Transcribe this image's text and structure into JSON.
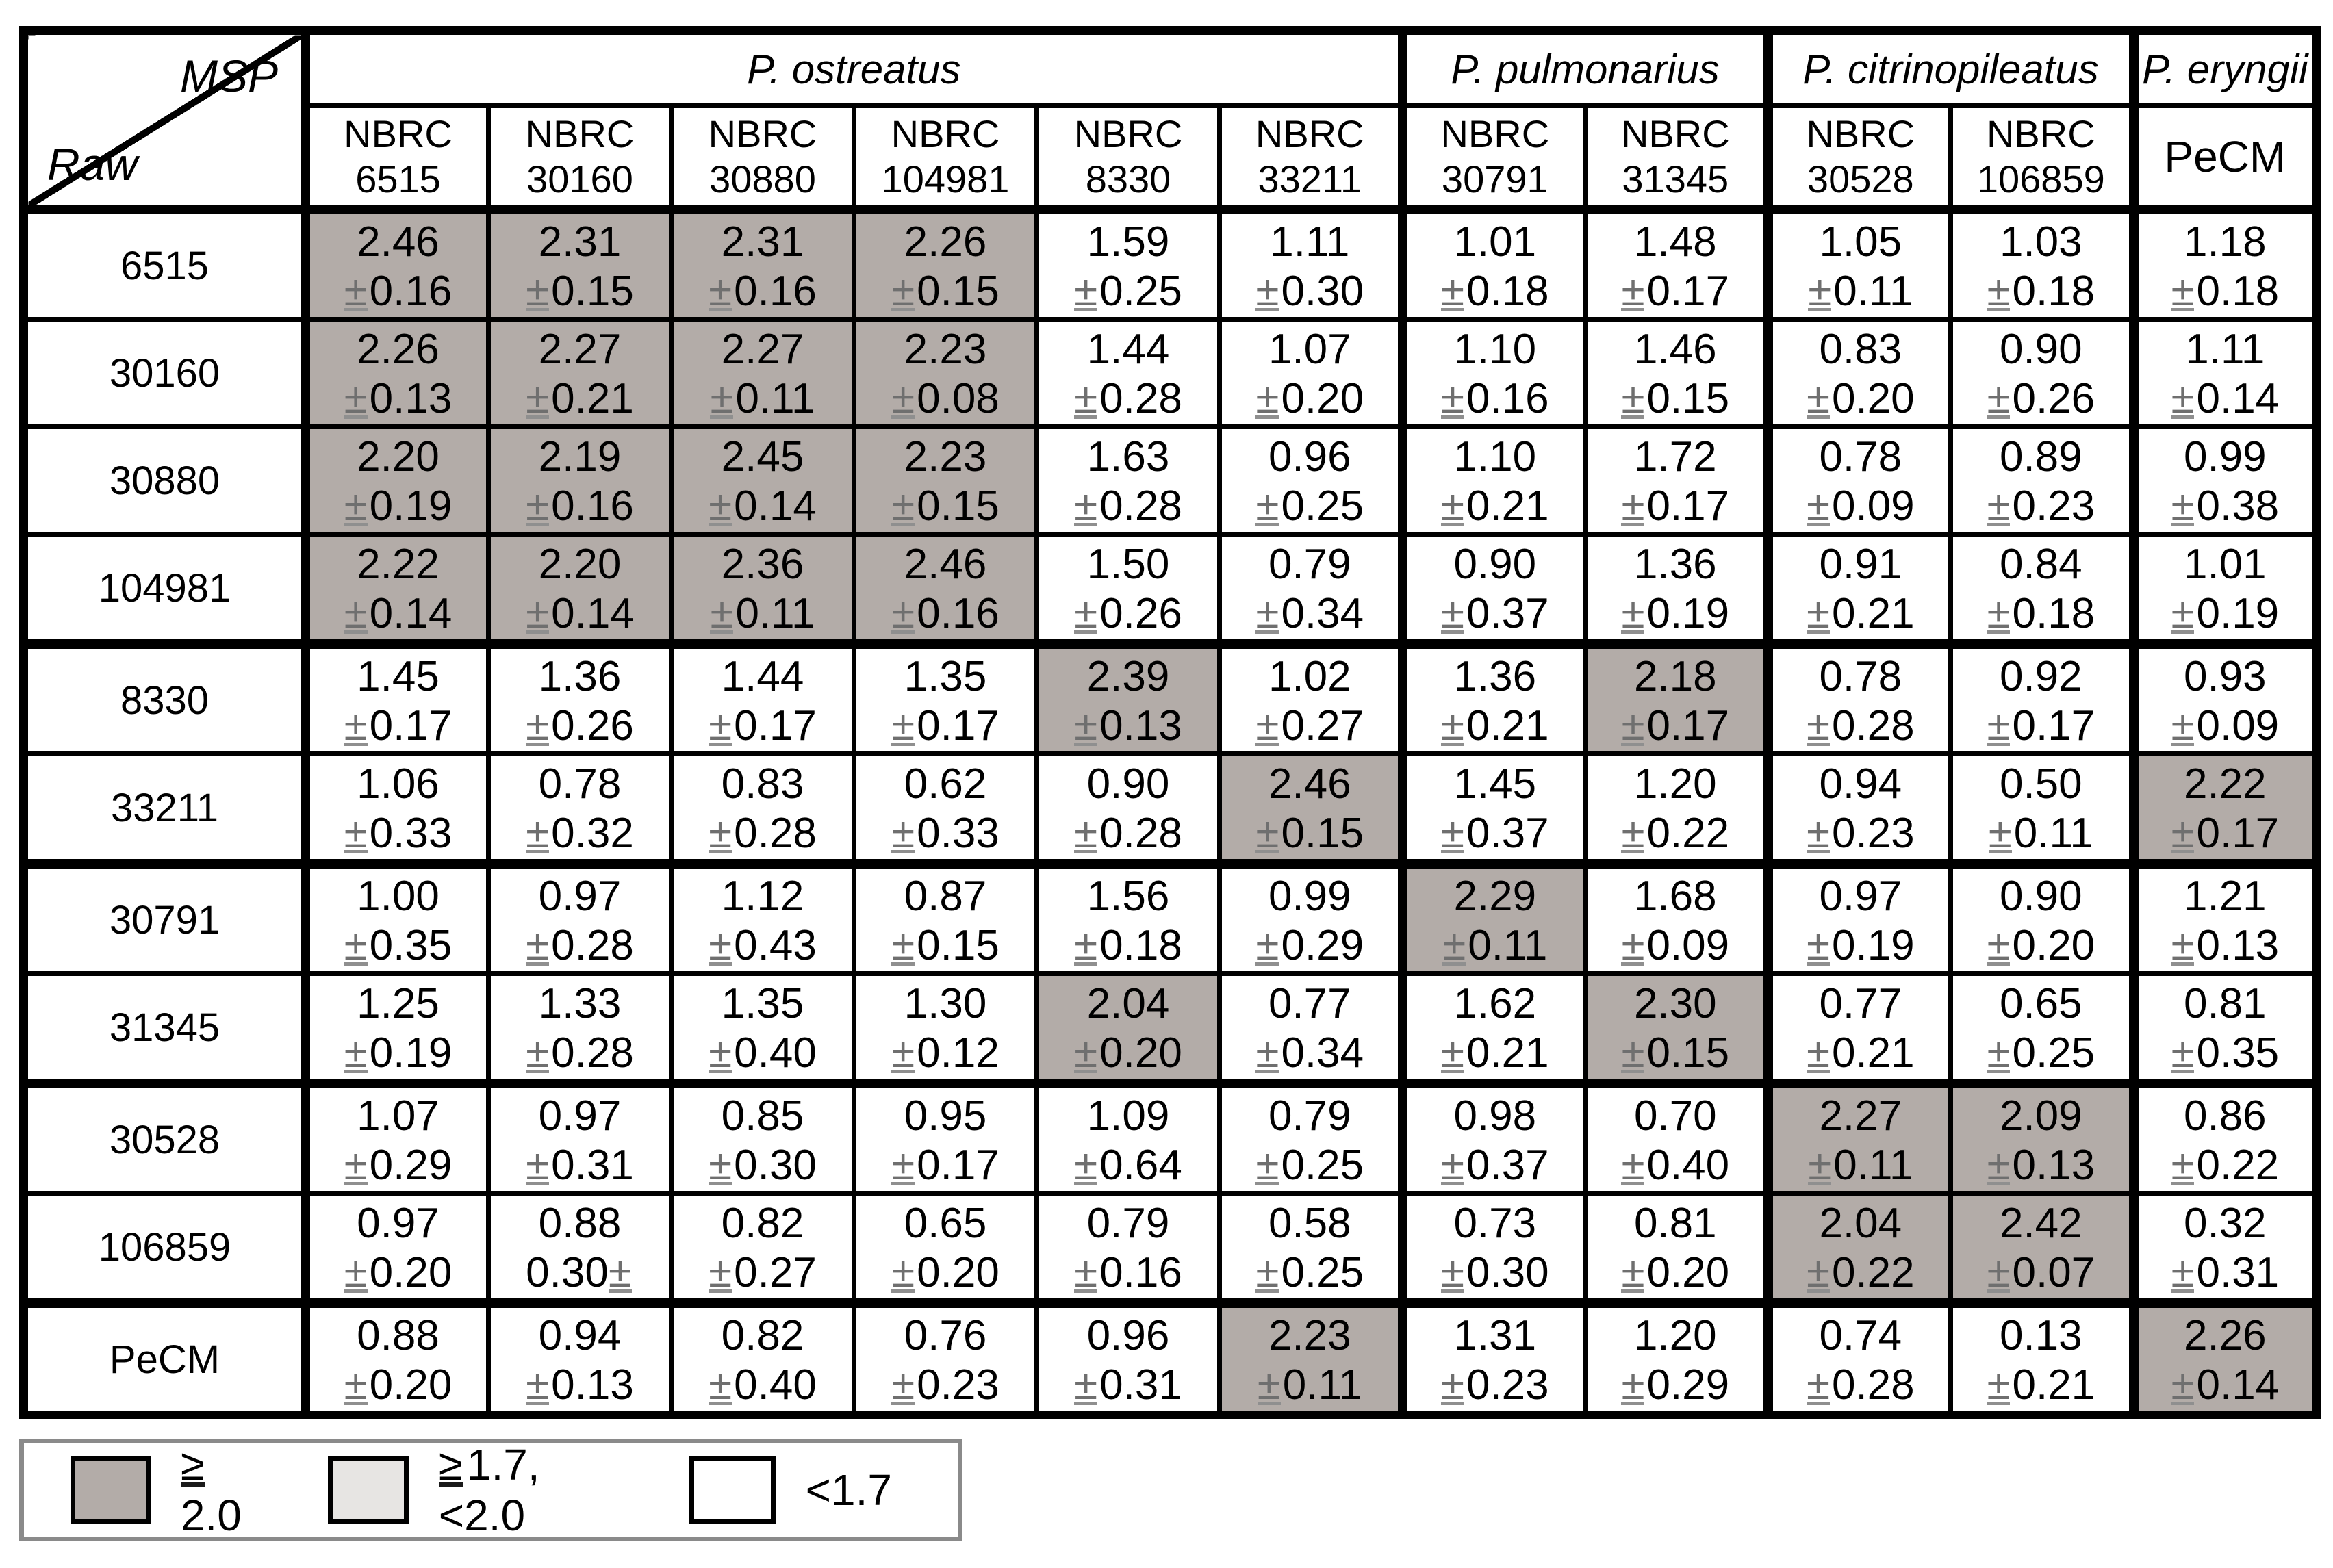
{
  "table": {
    "corner": {
      "top_label": "MSP",
      "bottom_label": "Raw"
    },
    "species_groups": [
      {
        "label": "P.  ostreatus",
        "span": 6
      },
      {
        "label": "P.  pulmonarius",
        "span": 2
      },
      {
        "label": "P. citrinopileatus",
        "span": 2
      },
      {
        "label": "P. eryngii",
        "span": 1
      }
    ],
    "column_headers": [
      [
        "NBRC",
        "6515"
      ],
      [
        "NBRC",
        "30160"
      ],
      [
        "NBRC",
        "30880"
      ],
      [
        "NBRC",
        "104981"
      ],
      [
        "NBRC",
        "8330"
      ],
      [
        "NBRC",
        "33211"
      ],
      [
        "NBRC",
        "30791"
      ],
      [
        "NBRC",
        "31345"
      ],
      [
        "NBRC",
        "30528"
      ],
      [
        "NBRC",
        "106859"
      ],
      [
        "PeCM"
      ]
    ],
    "rows": [
      {
        "label": "6515",
        "cells": [
          {
            "v": "2.46",
            "e": "±0.16",
            "hl": true
          },
          {
            "v": "2.31",
            "e": "±0.15",
            "hl": true
          },
          {
            "v": "2.31",
            "e": "±0.16",
            "hl": true
          },
          {
            "v": "2.26",
            "e": "±0.15",
            "hl": true
          },
          {
            "v": "1.59",
            "e": "±0.25",
            "hl": false
          },
          {
            "v": "1.11",
            "e": "±0.30",
            "hl": false
          },
          {
            "v": "1.01",
            "e": "±0.18",
            "hl": false
          },
          {
            "v": "1.48",
            "e": "±0.17",
            "hl": false
          },
          {
            "v": "1.05",
            "e": "±0.11",
            "hl": false
          },
          {
            "v": "1.03",
            "e": "±0.18",
            "hl": false
          },
          {
            "v": "1.18",
            "e": "±0.18",
            "hl": false
          }
        ]
      },
      {
        "label": "30160",
        "cells": [
          {
            "v": "2.26",
            "e": "±0.13",
            "hl": true
          },
          {
            "v": "2.27",
            "e": "±0.21",
            "hl": true
          },
          {
            "v": "2.27",
            "e": "±0.11",
            "hl": true
          },
          {
            "v": "2.23",
            "e": "±0.08",
            "hl": true
          },
          {
            "v": "1.44",
            "e": "±0.28",
            "hl": false
          },
          {
            "v": "1.07",
            "e": "±0.20",
            "hl": false
          },
          {
            "v": "1.10",
            "e": "±0.16",
            "hl": false
          },
          {
            "v": "1.46",
            "e": "±0.15",
            "hl": false
          },
          {
            "v": "0.83",
            "e": "±0.20",
            "hl": false
          },
          {
            "v": "0.90",
            "e": "±0.26",
            "hl": false
          },
          {
            "v": "1.11",
            "e": "±0.14",
            "hl": false
          }
        ]
      },
      {
        "label": "30880",
        "cells": [
          {
            "v": "2.20",
            "e": "±0.19",
            "hl": true
          },
          {
            "v": "2.19",
            "e": "±0.16",
            "hl": true
          },
          {
            "v": "2.45",
            "e": "±0.14",
            "hl": true
          },
          {
            "v": "2.23",
            "e": "±0.15",
            "hl": true
          },
          {
            "v": "1.63",
            "e": "±0.28",
            "hl": false
          },
          {
            "v": "0.96",
            "e": "±0.25",
            "hl": false
          },
          {
            "v": "1.10",
            "e": "±0.21",
            "hl": false
          },
          {
            "v": "1.72",
            "e": "±0.17",
            "hl": false
          },
          {
            "v": "0.78",
            "e": "±0.09",
            "hl": false
          },
          {
            "v": "0.89",
            "e": "±0.23",
            "hl": false
          },
          {
            "v": "0.99",
            "e": "±0.38",
            "hl": false
          }
        ]
      },
      {
        "label": "104981",
        "cells": [
          {
            "v": "2.22",
            "e": "±0.14",
            "hl": true
          },
          {
            "v": "2.20",
            "e": "±0.14",
            "hl": true
          },
          {
            "v": "2.36",
            "e": "±0.11",
            "hl": true
          },
          {
            "v": "2.46",
            "e": "±0.16",
            "hl": true
          },
          {
            "v": "1.50",
            "e": "±0.26",
            "hl": false
          },
          {
            "v": "0.79",
            "e": "±0.34",
            "hl": false
          },
          {
            "v": "0.90",
            "e": "±0.37",
            "hl": false
          },
          {
            "v": "1.36",
            "e": "±0.19",
            "hl": false
          },
          {
            "v": "0.91",
            "e": "±0.21",
            "hl": false
          },
          {
            "v": "0.84",
            "e": "±0.18",
            "hl": false
          },
          {
            "v": "1.01",
            "e": "±0.19",
            "hl": false
          }
        ]
      },
      {
        "label": "8330",
        "cells": [
          {
            "v": "1.45",
            "e": "±0.17",
            "hl": false
          },
          {
            "v": "1.36",
            "e": "±0.26",
            "hl": false
          },
          {
            "v": "1.44",
            "e": "±0.17",
            "hl": false
          },
          {
            "v": "1.35",
            "e": "±0.17",
            "hl": false
          },
          {
            "v": "2.39",
            "e": "±0.13",
            "hl": true
          },
          {
            "v": "1.02",
            "e": "±0.27",
            "hl": false
          },
          {
            "v": "1.36",
            "e": "±0.21",
            "hl": false
          },
          {
            "v": "2.18",
            "e": "±0.17",
            "hl": true
          },
          {
            "v": "0.78",
            "e": "±0.28",
            "hl": false
          },
          {
            "v": "0.92",
            "e": "±0.17",
            "hl": false
          },
          {
            "v": "0.93",
            "e": "±0.09",
            "hl": false
          }
        ]
      },
      {
        "label": "33211",
        "cells": [
          {
            "v": "1.06",
            "e": "±0.33",
            "hl": false
          },
          {
            "v": "0.78",
            "e": "±0.32",
            "hl": false
          },
          {
            "v": "0.83",
            "e": "±0.28",
            "hl": false
          },
          {
            "v": "0.62",
            "e": "±0.33",
            "hl": false
          },
          {
            "v": "0.90",
            "e": "±0.28",
            "hl": false
          },
          {
            "v": "2.46",
            "e": "±0.15",
            "hl": true
          },
          {
            "v": "1.45",
            "e": "±0.37",
            "hl": false
          },
          {
            "v": "1.20",
            "e": "±0.22",
            "hl": false
          },
          {
            "v": "0.94",
            "e": "±0.23",
            "hl": false
          },
          {
            "v": "0.50",
            "e": "±0.11",
            "hl": false
          },
          {
            "v": "2.22",
            "e": "±0.17",
            "hl": true
          }
        ]
      },
      {
        "label": "30791",
        "cells": [
          {
            "v": "1.00",
            "e": "±0.35",
            "hl": false
          },
          {
            "v": "0.97",
            "e": "±0.28",
            "hl": false
          },
          {
            "v": "1.12",
            "e": "±0.43",
            "hl": false
          },
          {
            "v": "0.87",
            "e": "±0.15",
            "hl": false
          },
          {
            "v": "1.56",
            "e": "±0.18",
            "hl": false
          },
          {
            "v": "0.99",
            "e": "±0.29",
            "hl": false
          },
          {
            "v": "2.29",
            "e": "±0.11",
            "hl": true
          },
          {
            "v": "1.68",
            "e": "±0.09",
            "hl": false
          },
          {
            "v": "0.97",
            "e": "±0.19",
            "hl": false
          },
          {
            "v": "0.90",
            "e": "±0.20",
            "hl": false
          },
          {
            "v": "1.21",
            "e": "±0.13",
            "hl": false
          }
        ]
      },
      {
        "label": "31345",
        "cells": [
          {
            "v": "1.25",
            "e": "±0.19",
            "hl": false
          },
          {
            "v": "1.33",
            "e": "±0.28",
            "hl": false
          },
          {
            "v": "1.35",
            "e": "±0.40",
            "hl": false
          },
          {
            "v": "1.30",
            "e": "±0.12",
            "hl": false
          },
          {
            "v": "2.04",
            "e": "±0.20",
            "hl": true
          },
          {
            "v": "0.77",
            "e": "±0.34",
            "hl": false
          },
          {
            "v": "1.62",
            "e": "±0.21",
            "hl": false
          },
          {
            "v": "2.30",
            "e": "±0.15",
            "hl": true
          },
          {
            "v": "0.77",
            "e": "±0.21",
            "hl": false
          },
          {
            "v": "0.65",
            "e": "±0.25",
            "hl": false
          },
          {
            "v": "0.81",
            "e": "±0.35",
            "hl": false
          }
        ]
      },
      {
        "label": "30528",
        "cells": [
          {
            "v": "1.07",
            "e": "±0.29",
            "hl": false
          },
          {
            "v": "0.97",
            "e": "±0.31",
            "hl": false
          },
          {
            "v": "0.85",
            "e": "±0.30",
            "hl": false
          },
          {
            "v": "0.95",
            "e": "±0.17",
            "hl": false
          },
          {
            "v": "1.09",
            "e": "±0.64",
            "hl": false
          },
          {
            "v": "0.79",
            "e": "±0.25",
            "hl": false
          },
          {
            "v": "0.98",
            "e": "±0.37",
            "hl": false
          },
          {
            "v": "0.70",
            "e": "±0.40",
            "hl": false
          },
          {
            "v": "2.27",
            "e": "±0.11",
            "hl": true
          },
          {
            "v": "2.09",
            "e": "±0.13",
            "hl": true
          },
          {
            "v": "0.86",
            "e": "±0.22",
            "hl": false
          }
        ]
      },
      {
        "label": "106859",
        "cells": [
          {
            "v": "0.97",
            "e": "±0.20",
            "hl": false
          },
          {
            "v": "0.88",
            "e": "0.30±",
            "hl": false
          },
          {
            "v": "0.82",
            "e": "±0.27",
            "hl": false
          },
          {
            "v": "0.65",
            "e": "±0.20",
            "hl": false
          },
          {
            "v": "0.79",
            "e": "±0.16",
            "hl": false
          },
          {
            "v": "0.58",
            "e": "±0.25",
            "hl": false
          },
          {
            "v": "0.73",
            "e": "±0.30",
            "hl": false
          },
          {
            "v": "0.81",
            "e": "±0.20",
            "hl": false
          },
          {
            "v": "2.04",
            "e": "±0.22",
            "hl": true
          },
          {
            "v": "2.42",
            "e": "±0.07",
            "hl": true
          },
          {
            "v": "0.32",
            "e": "±0.31",
            "hl": false
          }
        ]
      },
      {
        "label": "PeCM",
        "cells": [
          {
            "v": "0.88",
            "e": "±0.20",
            "hl": false
          },
          {
            "v": "0.94",
            "e": "±0.13",
            "hl": false
          },
          {
            "v": "0.82",
            "e": "±0.40",
            "hl": false
          },
          {
            "v": "0.76",
            "e": "±0.23",
            "hl": false
          },
          {
            "v": "0.96",
            "e": "±0.31",
            "hl": false
          },
          {
            "v": "2.23",
            "e": "±0.11",
            "hl": true
          },
          {
            "v": "1.31",
            "e": "±0.23",
            "hl": false
          },
          {
            "v": "1.20",
            "e": "±0.29",
            "hl": false
          },
          {
            "v": "0.74",
            "e": "±0.28",
            "hl": false
          },
          {
            "v": "0.13",
            "e": "±0.21",
            "hl": false
          },
          {
            "v": "2.26",
            "e": "±0.14",
            "hl": true
          }
        ]
      }
    ]
  },
  "legend": {
    "items": [
      {
        "swatch": "dark",
        "label": "≧2.0"
      },
      {
        "swatch": "light",
        "label": "≧1.7, <2.0"
      },
      {
        "swatch": "white",
        "label": "<1.7"
      }
    ]
  },
  "colors": {
    "highlight_dark": "#b3aca8",
    "highlight_light": "#e7e5e3",
    "cell_white": "#ffffff",
    "border": "#000000",
    "legend_border": "#8a8a8a",
    "plus_minus_gray": "#6f6f6f"
  }
}
